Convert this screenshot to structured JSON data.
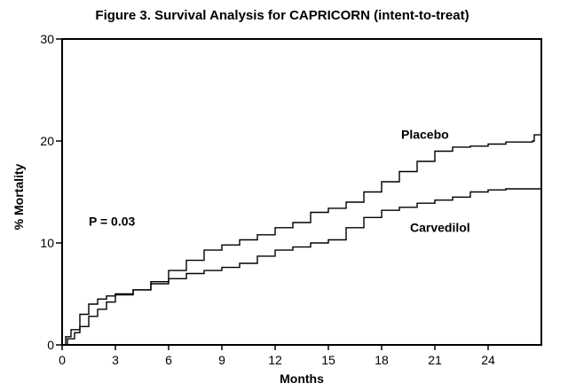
{
  "chart_data": {
    "type": "line",
    "title": "Figure 3. Survival Analysis for CAPRICORN (intent-to-treat)",
    "xlabel": "Months",
    "ylabel": "% Mortality",
    "xlim": [
      0,
      27
    ],
    "ylim": [
      0,
      30
    ],
    "x_ticks": [
      "0",
      "3",
      "6",
      "9",
      "12",
      "15",
      "18",
      "21",
      "24"
    ],
    "y_ticks": [
      "0",
      "10",
      "20",
      "30"
    ],
    "grid": false,
    "annotations": [
      {
        "text": "P = 0.03",
        "x": 1.0,
        "y": 11
      }
    ],
    "series": [
      {
        "name": "Placebo",
        "label_at": {
          "x": 19.1,
          "y": 20.2
        },
        "color": "#000000",
        "points": [
          [
            0,
            0
          ],
          [
            0.2,
            0.8
          ],
          [
            0.5,
            1.5
          ],
          [
            1.0,
            3.0
          ],
          [
            1.5,
            4.0
          ],
          [
            2.0,
            4.5
          ],
          [
            2.5,
            4.8
          ],
          [
            3.0,
            5.0
          ],
          [
            4.0,
            5.4
          ],
          [
            5.0,
            6.0
          ],
          [
            6.0,
            7.3
          ],
          [
            7.0,
            8.3
          ],
          [
            8.0,
            9.3
          ],
          [
            9.0,
            9.8
          ],
          [
            10.0,
            10.3
          ],
          [
            11.0,
            10.8
          ],
          [
            12.0,
            11.5
          ],
          [
            13.0,
            12.0
          ],
          [
            14.0,
            13.0
          ],
          [
            15.0,
            13.4
          ],
          [
            16.0,
            14.0
          ],
          [
            17.0,
            15.0
          ],
          [
            18.0,
            16.0
          ],
          [
            19.0,
            17.0
          ],
          [
            20.0,
            18.0
          ],
          [
            21.0,
            19.0
          ],
          [
            22.0,
            19.4
          ],
          [
            23.0,
            19.5
          ],
          [
            24.0,
            19.7
          ],
          [
            25.0,
            19.9
          ],
          [
            26.5,
            20.0
          ],
          [
            26.6,
            20.6
          ],
          [
            27.0,
            20.6
          ]
        ]
      },
      {
        "name": "Carvedilol",
        "label_at": {
          "x": 19.6,
          "y": 11.1
        },
        "color": "#000000",
        "points": [
          [
            0,
            0
          ],
          [
            0.3,
            0.6
          ],
          [
            0.7,
            1.2
          ],
          [
            1.0,
            1.8
          ],
          [
            1.5,
            2.8
          ],
          [
            2.0,
            3.5
          ],
          [
            2.5,
            4.2
          ],
          [
            3.0,
            4.9
          ],
          [
            4.0,
            5.4
          ],
          [
            5.0,
            6.2
          ],
          [
            6.0,
            6.5
          ],
          [
            7.0,
            7.0
          ],
          [
            8.0,
            7.3
          ],
          [
            9.0,
            7.6
          ],
          [
            10.0,
            8.0
          ],
          [
            11.0,
            8.7
          ],
          [
            12.0,
            9.3
          ],
          [
            13.0,
            9.6
          ],
          [
            14.0,
            10.0
          ],
          [
            15.0,
            10.3
          ],
          [
            16.0,
            11.5
          ],
          [
            17.0,
            12.5
          ],
          [
            18.0,
            13.2
          ],
          [
            19.0,
            13.5
          ],
          [
            20.0,
            13.9
          ],
          [
            21.0,
            14.2
          ],
          [
            22.0,
            14.5
          ],
          [
            23.0,
            15.0
          ],
          [
            24.0,
            15.2
          ],
          [
            25.0,
            15.3
          ],
          [
            27.0,
            15.3
          ]
        ]
      }
    ]
  }
}
